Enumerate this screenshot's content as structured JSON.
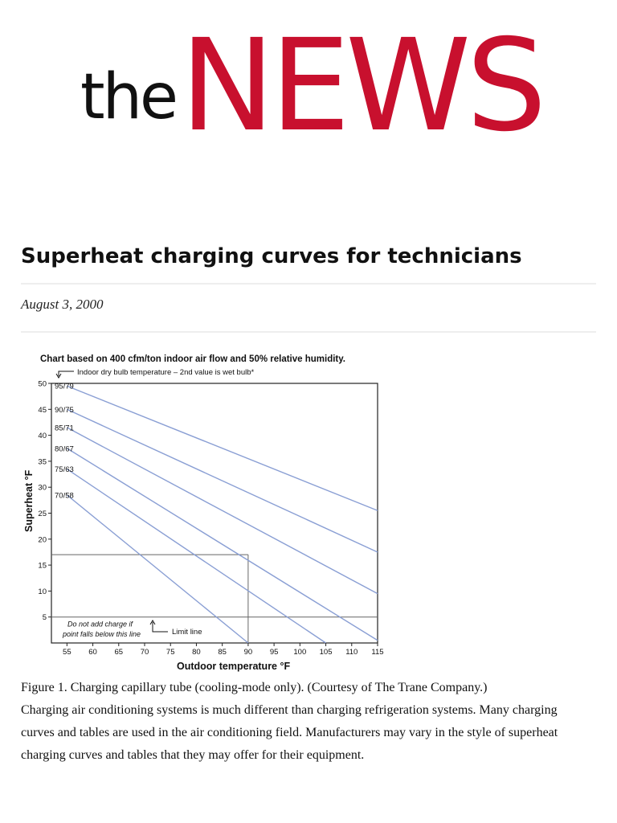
{
  "masthead": {
    "logo_the": "the",
    "logo_news": "NEWS",
    "brand_color": "#c8102e"
  },
  "article": {
    "title": "Superheat charging curves for technicians",
    "date": "August 3, 2000",
    "caption": "Figure 1. Charging capillary tube (cooling-mode only). (Courtesy of The Trane Company.)",
    "body": "Charging air conditioning systems is much different than charging refrigeration systems. Many charging curves and tables are used in the air conditioning field. Manufacturers may vary in the style of superheat charging curves and tables that they may offer for their equipment."
  },
  "chart_data": {
    "type": "line",
    "title": "Chart based on 400 cfm/ton indoor air flow and 50% relative humidity.",
    "legend_note": "Indoor dry bulb temperature – 2nd value is wet bulb*",
    "xlabel": "Outdoor temperature °F",
    "ylabel": "Superheat °F",
    "xlim": [
      52,
      115
    ],
    "ylim": [
      0,
      50
    ],
    "xticks": [
      55,
      60,
      65,
      70,
      75,
      80,
      85,
      90,
      95,
      100,
      105,
      110,
      115
    ],
    "xtick_labels": [
      "55",
      "60",
      "65",
      "70",
      "75",
      "80",
      "85",
      "90",
      "95",
      "100",
      "105",
      "110",
      "115"
    ],
    "yticks": [
      5,
      10,
      15,
      20,
      25,
      30,
      35,
      40,
      45,
      50
    ],
    "yaxis_label_min_tick_labels": [
      "5",
      "10",
      "15",
      "20",
      "25",
      "30",
      "35",
      "40",
      "45",
      "50"
    ],
    "series": [
      {
        "name": "95/79",
        "x": [
          55,
          115
        ],
        "y": [
          49.5,
          25.5
        ]
      },
      {
        "name": "90/75",
        "x": [
          55,
          115
        ],
        "y": [
          45,
          17.5
        ]
      },
      {
        "name": "85/71",
        "x": [
          55,
          115
        ],
        "y": [
          41.5,
          9.5
        ]
      },
      {
        "name": "80/67",
        "x": [
          55,
          115
        ],
        "y": [
          37.5,
          0.5
        ]
      },
      {
        "name": "75/63",
        "x": [
          55,
          105
        ],
        "y": [
          33.5,
          0
        ]
      },
      {
        "name": "70/58",
        "x": [
          55,
          90
        ],
        "y": [
          28.5,
          0
        ]
      }
    ],
    "limit_line": {
      "y": 5,
      "label": "Limit line",
      "note_line1": "Do not add charge if",
      "note_line2": "point falls below this line"
    },
    "example_point": {
      "x": 90,
      "y": 17
    },
    "colors": {
      "curve": "#8a9fd4",
      "axis": "#222222",
      "guide": "#666666"
    }
  }
}
